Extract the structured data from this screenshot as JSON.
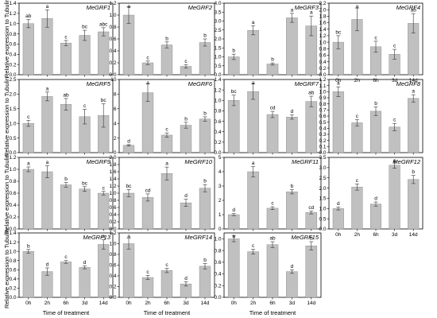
{
  "figure": {
    "ylabel": "Relative expression to Tubulin",
    "xlabel": "Time of treatment",
    "bar_color": "#c0c0c0",
    "axis_color": "#000000"
  },
  "chart_data": [
    {
      "type": "bar",
      "title": "MeGRF1",
      "categories": [
        "0h",
        "2h",
        "6h",
        "3d",
        "14d"
      ],
      "values": [
        1.0,
        1.1,
        0.62,
        0.77,
        0.84
      ],
      "errors": [
        0.08,
        0.17,
        0.05,
        0.1,
        0.08
      ],
      "letters": [
        "ab",
        "a",
        "c",
        "bc",
        "abc"
      ],
      "ylim": [
        0,
        1.4
      ],
      "yticks": [
        0.0,
        0.2,
        0.4,
        0.6,
        0.8,
        1.0,
        1.2,
        1.4
      ],
      "yticklabels": [
        "0.0",
        "0.2",
        "0.4",
        "0.6",
        "0.8",
        "1.0",
        "1.2",
        "1.4"
      ],
      "show_xticks": false
    },
    {
      "type": "bar",
      "title": "MeGRF2",
      "categories": [
        "0h",
        "2h",
        "6h",
        "3d",
        "14d"
      ],
      "values": [
        1.0,
        0.2,
        0.5,
        0.14,
        0.54
      ],
      "errors": [
        0.14,
        0.03,
        0.05,
        0.03,
        0.06
      ],
      "letters": [
        "a",
        "c",
        "b",
        "c",
        "b"
      ],
      "ylim": [
        0,
        1.2
      ],
      "yticks": [
        0.0,
        0.2,
        0.4,
        0.6,
        0.8,
        1.0,
        1.2
      ],
      "yticklabels": [
        "0.0",
        "0.2",
        "0.4",
        "0.6",
        "0.8",
        "1.0",
        "1.2"
      ],
      "show_xticks": false
    },
    {
      "type": "bar",
      "title": "MeGRF3",
      "categories": [
        "0h",
        "2h",
        "6h",
        "3d",
        "14d"
      ],
      "values": [
        1.0,
        2.48,
        0.6,
        3.18,
        2.73
      ],
      "errors": [
        0.15,
        0.25,
        0.06,
        0.25,
        0.55
      ],
      "letters": [
        "b",
        "a",
        "b",
        "a",
        "a"
      ],
      "ylim": [
        0,
        4.0
      ],
      "yticks": [
        0.0,
        0.5,
        1.0,
        1.5,
        2.0,
        2.5,
        3.0,
        3.5,
        4.0
      ],
      "yticklabels": [
        "0.0",
        "0.5",
        "1.0",
        "1.5",
        "2.0",
        "2.5",
        "3.0",
        "3.5",
        "4.0"
      ],
      "show_xticks": false
    },
    {
      "type": "bar",
      "title": "MeGRF4",
      "categories": [
        "0h",
        "2h",
        "6h",
        "3d",
        "14d"
      ],
      "values": [
        1.0,
        1.7,
        0.86,
        0.63,
        1.58
      ],
      "errors": [
        0.2,
        0.35,
        0.17,
        0.15,
        0.3
      ],
      "letters": [
        "bc",
        "a",
        "c",
        "c",
        "ab"
      ],
      "ylim": [
        0,
        2.2
      ],
      "yticks": [
        0.0,
        0.2,
        0.4,
        0.6,
        0.8,
        1.0,
        1.2,
        1.4,
        1.6,
        1.8,
        2.0,
        2.2
      ],
      "yticklabels": [
        "0.0",
        "0.2",
        "0.4",
        "0.6",
        "0.8",
        "1.0",
        "1.2",
        "1.4",
        "1.6",
        "1.8",
        "2.0",
        "2.2"
      ],
      "show_xticks": true
    },
    {
      "type": "bar",
      "title": "MeGRF5",
      "categories": [
        "0h",
        "2h",
        "6h",
        "3d",
        "14d"
      ],
      "values": [
        1.0,
        1.92,
        1.65,
        1.23,
        1.27
      ],
      "errors": [
        0.1,
        0.15,
        0.2,
        0.25,
        0.4
      ],
      "letters": [
        "c",
        "a",
        "ab",
        "c",
        "bc"
      ],
      "ylim": [
        0,
        2.5
      ],
      "yticks": [
        0.0,
        0.5,
        1.0,
        1.5,
        2.0,
        2.5
      ],
      "yticklabels": [
        "0.0",
        "0.5",
        "1.0",
        "1.5",
        "2.0",
        "2.5"
      ],
      "show_xticks": false
    },
    {
      "type": "bar",
      "title": "MeGRF6",
      "categories": [
        "0h",
        "2h",
        "6h",
        "3d",
        "14d"
      ],
      "values": [
        1.0,
        8.2,
        2.4,
        3.75,
        4.6
      ],
      "errors": [
        0.1,
        1.2,
        0.3,
        0.4,
        0.3
      ],
      "letters": [
        "d",
        "a",
        "c",
        "b",
        "b"
      ],
      "ylim": [
        0,
        10
      ],
      "yticks": [
        0,
        2,
        4,
        6,
        8,
        10
      ],
      "yticklabels": [
        "0",
        "2",
        "4",
        "6",
        "8",
        "10"
      ],
      "show_xticks": false
    },
    {
      "type": "bar",
      "title": "MeGRF7",
      "categories": [
        "0h",
        "2h",
        "6h",
        "3d",
        "14d"
      ],
      "values": [
        1.0,
        1.17,
        0.73,
        0.68,
        0.98
      ],
      "errors": [
        0.1,
        0.15,
        0.06,
        0.04,
        0.1
      ],
      "letters": [
        "bc",
        "a",
        "cd",
        "d",
        "ab"
      ],
      "ylim": [
        0,
        1.4
      ],
      "yticks": [
        0.0,
        0.2,
        0.4,
        0.6,
        0.8,
        1.0,
        1.2,
        1.4
      ],
      "yticklabels": [
        "0.0",
        "0.2",
        "0.4",
        "0.6",
        "0.8",
        "1.0",
        "1.2",
        "1.4"
      ],
      "show_xticks": false
    },
    {
      "type": "bar",
      "title": "MeGRF8",
      "categories": [
        "0h",
        "2h",
        "6h",
        "3d",
        "14d"
      ],
      "values": [
        1.0,
        0.49,
        0.68,
        0.42,
        0.89
      ],
      "errors": [
        0.08,
        0.05,
        0.07,
        0.06,
        0.06
      ],
      "letters": [
        "a",
        "c",
        "b",
        "c",
        "a"
      ],
      "ylim": [
        0,
        1.2
      ],
      "yticks": [
        0.0,
        0.1,
        0.2,
        0.3,
        0.4,
        0.5,
        0.6,
        0.7,
        0.8,
        0.9,
        1.0,
        1.1,
        1.2
      ],
      "yticklabels": [
        "0.0",
        "0.1",
        "0.2",
        "0.3",
        "0.4",
        "0.5",
        "0.6",
        "0.7",
        "0.8",
        "0.9",
        "1.0",
        "1.1",
        "1.2"
      ],
      "show_xticks": false
    },
    {
      "type": "bar",
      "title": "MeGRF9",
      "categories": [
        "0h",
        "2h",
        "6h",
        "3d",
        "14d"
      ],
      "values": [
        1.0,
        0.96,
        0.74,
        0.67,
        0.6
      ],
      "errors": [
        0.04,
        0.1,
        0.04,
        0.04,
        0.03
      ],
      "letters": [
        "a",
        "a",
        "b",
        "bc",
        "c"
      ],
      "ylim": [
        0,
        1.2
      ],
      "yticks": [
        0.0,
        0.2,
        0.4,
        0.6,
        0.8,
        1.0,
        1.2
      ],
      "yticklabels": [
        "0.0",
        "0.2",
        "0.4",
        "0.6",
        "0.8",
        "1.0",
        "1.2"
      ],
      "show_xticks": false
    },
    {
      "type": "bar",
      "title": "MeGRF10",
      "categories": [
        "0h",
        "2h",
        "6h",
        "3d",
        "14d"
      ],
      "values": [
        1.0,
        0.88,
        1.55,
        0.73,
        1.14
      ],
      "errors": [
        0.1,
        0.1,
        0.18,
        0.1,
        0.1
      ],
      "letters": [
        "bc",
        "cd",
        "a",
        "d",
        "b"
      ],
      "ylim": [
        0,
        2.0
      ],
      "yticks": [
        0.0,
        0.2,
        0.4,
        0.6,
        0.8,
        1.0,
        1.2,
        1.4,
        1.6,
        1.8,
        2.0
      ],
      "yticklabels": [
        "0.0",
        "0.2",
        "0.4",
        "0.6",
        "0.8",
        "1.0",
        "1.2",
        "1.4",
        "1.6",
        "1.8",
        "2.0"
      ],
      "show_xticks": false
    },
    {
      "type": "bar",
      "title": "MeGRF11",
      "categories": [
        "0h",
        "2h",
        "6h",
        "3d",
        "14d"
      ],
      "values": [
        1.0,
        4.0,
        1.45,
        2.6,
        1.15
      ],
      "errors": [
        0.07,
        0.35,
        0.1,
        0.15,
        0.1
      ],
      "letters": [
        "d",
        "a",
        "c",
        "b",
        "cd"
      ],
      "ylim": [
        0,
        5
      ],
      "yticks": [
        0,
        1,
        2,
        3,
        4,
        5
      ],
      "yticklabels": [
        "0",
        "1",
        "2",
        "3",
        "4",
        "5"
      ],
      "show_xticks": false
    },
    {
      "type": "bar",
      "title": "MeGRF12",
      "categories": [
        "0h",
        "2h",
        "6h",
        "3d",
        "14d"
      ],
      "values": [
        1.0,
        2.05,
        1.22,
        3.12,
        2.42
      ],
      "errors": [
        0.07,
        0.15,
        0.1,
        0.15,
        0.2
      ],
      "letters": [
        "d",
        "c",
        "d",
        "a",
        "b"
      ],
      "ylim": [
        0,
        3.5
      ],
      "yticks": [
        0.0,
        0.5,
        1.0,
        1.5,
        2.0,
        2.5,
        3.0,
        3.5
      ],
      "yticklabels": [
        "0.0",
        "0.5",
        "1.0",
        "1.5",
        "2.0",
        "2.5",
        "3.0",
        "3.5"
      ],
      "show_xticks": true
    },
    {
      "type": "bar",
      "title": "MeGRF13",
      "categories": [
        "0h",
        "2h",
        "6h",
        "3d",
        "14d"
      ],
      "values": [
        1.0,
        0.56,
        0.77,
        0.65,
        1.15
      ],
      "errors": [
        0.04,
        0.08,
        0.03,
        0.03,
        0.1
      ],
      "letters": [
        "b",
        "d",
        "c",
        "d",
        "a"
      ],
      "ylim": [
        0,
        1.4
      ],
      "yticks": [
        0.0,
        0.2,
        0.4,
        0.6,
        0.8,
        1.0,
        1.2,
        1.4
      ],
      "yticklabels": [
        "0.0",
        "0.2",
        "0.4",
        "0.6",
        "0.8",
        "1.0",
        "1.2",
        "1.4"
      ],
      "show_xticks": true
    },
    {
      "type": "bar",
      "title": "MeGRF14",
      "categories": [
        "0h",
        "2h",
        "6h",
        "3d",
        "14d"
      ],
      "values": [
        1.0,
        0.37,
        0.5,
        0.25,
        0.58
      ],
      "errors": [
        0.1,
        0.04,
        0.04,
        0.04,
        0.05
      ],
      "letters": [
        "a",
        "c",
        "c",
        "d",
        "b"
      ],
      "ylim": [
        0,
        1.2
      ],
      "yticks": [
        0.0,
        0.2,
        0.4,
        0.6,
        0.8,
        1.0,
        1.2
      ],
      "yticklabels": [
        "0.0",
        "0.2",
        "0.4",
        "0.6",
        "0.8",
        "1.0",
        "1.2"
      ],
      "show_xticks": true
    },
    {
      "type": "bar",
      "title": "MeGRF15",
      "categories": [
        "0h",
        "2h",
        "6h",
        "3d",
        "14d"
      ],
      "values": [
        1.0,
        0.78,
        0.9,
        0.44,
        0.88
      ],
      "errors": [
        0.05,
        0.04,
        0.05,
        0.03,
        0.07
      ],
      "letters": [
        "a",
        "c",
        "ab",
        "d",
        "b"
      ],
      "ylim": [
        0,
        1.1
      ],
      "yticks": [
        0.0,
        0.2,
        0.4,
        0.6,
        0.8,
        1.0
      ],
      "yticklabels": [
        "0.0",
        "0.2",
        "0.4",
        "0.6",
        "0.8",
        "1.0"
      ],
      "show_xticks": true
    }
  ]
}
